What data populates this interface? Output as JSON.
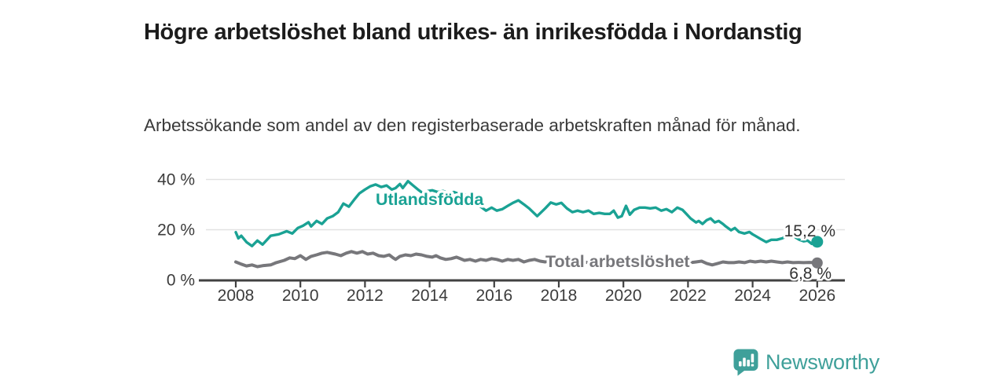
{
  "header": {
    "title": "Högre arbetslöshet bland utrikes- än inrikesfödda i Nordanstig",
    "subtitle": "Arbetssökande som andel av den registerbaserade arbetskraften månad för månad."
  },
  "branding": {
    "logo_text": "Newsworthy",
    "logo_icon": "bar-chart-speech-bubble-icon",
    "accent_color": "#3fa09a"
  },
  "chart_data": {
    "type": "line",
    "title": "Högre arbetslöshet bland utrikes- än inrikesfödda i Nordanstig",
    "subtitle": "Arbetssökande som andel av den registerbaserade arbetskraften månad för månad.",
    "unit": "%",
    "grid": "horizontal",
    "legend_position": "inline-labels",
    "x_axis": {
      "tick_values": [
        2008,
        2010,
        2012,
        2014,
        2016,
        2018,
        2020,
        2022,
        2024,
        2026
      ],
      "tick_labels": [
        "2008",
        "2010",
        "2012",
        "2014",
        "2016",
        "2018",
        "2020",
        "2022",
        "2024",
        "2026"
      ],
      "range": [
        2006.9,
        2026.8
      ]
    },
    "y_axis": {
      "tick_values": [
        0,
        20,
        40
      ],
      "tick_labels": [
        "0 %",
        "20 %",
        "40 %"
      ],
      "range": [
        0,
        43
      ]
    },
    "colors": {
      "grid": "#e2e2e2",
      "axis": "#414141",
      "tick_text": "#3c3c3c",
      "value_label_text": "#333333"
    },
    "series": [
      {
        "name": "Utlandsfödda",
        "color": "#1aa294",
        "end_value": 15.2,
        "end_label": "15,2 %",
        "points": [
          [
            2008.0,
            19.0
          ],
          [
            2008.08,
            16.6
          ],
          [
            2008.17,
            17.6
          ],
          [
            2008.33,
            15.1
          ],
          [
            2008.5,
            13.5
          ],
          [
            2008.67,
            15.7
          ],
          [
            2008.83,
            14.1
          ],
          [
            2009.08,
            17.6
          ],
          [
            2009.33,
            18.2
          ],
          [
            2009.58,
            19.4
          ],
          [
            2009.75,
            18.5
          ],
          [
            2009.92,
            20.7
          ],
          [
            2010.08,
            21.6
          ],
          [
            2010.25,
            23.0
          ],
          [
            2010.33,
            21.3
          ],
          [
            2010.5,
            23.5
          ],
          [
            2010.67,
            22.3
          ],
          [
            2010.83,
            24.5
          ],
          [
            2011.0,
            25.4
          ],
          [
            2011.17,
            27.0
          ],
          [
            2011.33,
            30.4
          ],
          [
            2011.5,
            29.2
          ],
          [
            2011.67,
            32.0
          ],
          [
            2011.83,
            34.5
          ],
          [
            2012.0,
            36.0
          ],
          [
            2012.17,
            37.3
          ],
          [
            2012.33,
            38.0
          ],
          [
            2012.5,
            37.0
          ],
          [
            2012.67,
            37.6
          ],
          [
            2012.83,
            36.0
          ],
          [
            2012.95,
            36.6
          ],
          [
            2013.08,
            38.2
          ],
          [
            2013.17,
            36.6
          ],
          [
            2013.33,
            39.3
          ],
          [
            2013.5,
            37.5
          ],
          [
            2013.67,
            35.7
          ],
          [
            2013.83,
            34.2
          ],
          [
            2013.95,
            35.4
          ],
          [
            2014.08,
            35.7
          ],
          [
            2014.25,
            35.0
          ],
          [
            2014.42,
            35.4
          ],
          [
            2014.58,
            34.5
          ],
          [
            2014.75,
            35.0
          ],
          [
            2014.92,
            34.2
          ],
          [
            2015.08,
            34.0
          ],
          [
            2015.25,
            33.5
          ],
          [
            2015.42,
            31.0
          ],
          [
            2015.58,
            29.2
          ],
          [
            2015.75,
            27.6
          ],
          [
            2015.92,
            28.8
          ],
          [
            2016.08,
            27.6
          ],
          [
            2016.25,
            28.2
          ],
          [
            2016.42,
            29.5
          ],
          [
            2016.58,
            30.7
          ],
          [
            2016.75,
            31.7
          ],
          [
            2016.92,
            30.1
          ],
          [
            2017.08,
            28.5
          ],
          [
            2017.33,
            25.4
          ],
          [
            2017.58,
            28.5
          ],
          [
            2017.75,
            30.8
          ],
          [
            2017.92,
            30.1
          ],
          [
            2018.08,
            30.7
          ],
          [
            2018.25,
            28.5
          ],
          [
            2018.42,
            27.0
          ],
          [
            2018.58,
            27.6
          ],
          [
            2018.75,
            27.0
          ],
          [
            2018.92,
            27.6
          ],
          [
            2019.08,
            26.3
          ],
          [
            2019.25,
            26.7
          ],
          [
            2019.42,
            26.3
          ],
          [
            2019.58,
            26.3
          ],
          [
            2019.7,
            27.6
          ],
          [
            2019.83,
            24.8
          ],
          [
            2019.95,
            25.4
          ],
          [
            2020.08,
            29.5
          ],
          [
            2020.2,
            26.0
          ],
          [
            2020.33,
            27.9
          ],
          [
            2020.5,
            28.8
          ],
          [
            2020.67,
            28.8
          ],
          [
            2020.83,
            28.5
          ],
          [
            2021.0,
            28.8
          ],
          [
            2021.17,
            27.6
          ],
          [
            2021.33,
            28.2
          ],
          [
            2021.5,
            27.0
          ],
          [
            2021.67,
            28.8
          ],
          [
            2021.83,
            27.9
          ],
          [
            2021.95,
            26.3
          ],
          [
            2022.08,
            24.5
          ],
          [
            2022.25,
            22.9
          ],
          [
            2022.33,
            23.5
          ],
          [
            2022.45,
            22.3
          ],
          [
            2022.58,
            23.8
          ],
          [
            2022.7,
            24.5
          ],
          [
            2022.83,
            22.9
          ],
          [
            2022.95,
            23.5
          ],
          [
            2023.08,
            22.3
          ],
          [
            2023.17,
            21.3
          ],
          [
            2023.33,
            19.8
          ],
          [
            2023.45,
            20.7
          ],
          [
            2023.58,
            19.1
          ],
          [
            2023.75,
            18.5
          ],
          [
            2023.9,
            19.1
          ],
          [
            2024.0,
            18.2
          ],
          [
            2024.08,
            17.6
          ],
          [
            2024.25,
            16.3
          ],
          [
            2024.42,
            15.1
          ],
          [
            2024.58,
            16.0
          ],
          [
            2024.75,
            16.0
          ],
          [
            2024.92,
            16.6
          ],
          [
            2025.08,
            17.6
          ],
          [
            2025.17,
            18.5
          ],
          [
            2025.33,
            16.9
          ],
          [
            2025.45,
            16.0
          ],
          [
            2025.58,
            15.4
          ],
          [
            2025.7,
            15.7
          ],
          [
            2025.83,
            14.4
          ],
          [
            2025.92,
            15.7
          ],
          [
            2026.0,
            15.2
          ]
        ]
      },
      {
        "name": "Total arbetslöshet",
        "color": "#77777b",
        "end_value": 6.8,
        "end_label": "6,8 %",
        "points": [
          [
            2008.0,
            7.2
          ],
          [
            2008.17,
            6.3
          ],
          [
            2008.33,
            5.6
          ],
          [
            2008.5,
            6.0
          ],
          [
            2008.67,
            5.3
          ],
          [
            2008.83,
            5.7
          ],
          [
            2009.08,
            6.0
          ],
          [
            2009.25,
            6.9
          ],
          [
            2009.5,
            7.8
          ],
          [
            2009.67,
            8.8
          ],
          [
            2009.83,
            8.5
          ],
          [
            2010.0,
            9.7
          ],
          [
            2010.17,
            8.2
          ],
          [
            2010.33,
            9.4
          ],
          [
            2010.5,
            10.0
          ],
          [
            2010.67,
            10.7
          ],
          [
            2010.83,
            11.0
          ],
          [
            2011.08,
            10.3
          ],
          [
            2011.25,
            9.7
          ],
          [
            2011.42,
            10.7
          ],
          [
            2011.58,
            11.3
          ],
          [
            2011.75,
            10.7
          ],
          [
            2011.92,
            11.3
          ],
          [
            2012.08,
            10.3
          ],
          [
            2012.25,
            10.7
          ],
          [
            2012.42,
            9.7
          ],
          [
            2012.58,
            9.4
          ],
          [
            2012.75,
            10.0
          ],
          [
            2012.87,
            8.8
          ],
          [
            2012.95,
            8.2
          ],
          [
            2013.08,
            9.4
          ],
          [
            2013.25,
            10.0
          ],
          [
            2013.42,
            9.7
          ],
          [
            2013.58,
            10.3
          ],
          [
            2013.75,
            10.0
          ],
          [
            2013.92,
            9.4
          ],
          [
            2014.08,
            9.1
          ],
          [
            2014.2,
            9.7
          ],
          [
            2014.33,
            8.8
          ],
          [
            2014.5,
            8.2
          ],
          [
            2014.67,
            8.5
          ],
          [
            2014.83,
            9.1
          ],
          [
            2014.95,
            8.5
          ],
          [
            2015.08,
            7.8
          ],
          [
            2015.25,
            8.2
          ],
          [
            2015.42,
            7.5
          ],
          [
            2015.58,
            8.2
          ],
          [
            2015.75,
            7.8
          ],
          [
            2015.92,
            8.5
          ],
          [
            2016.08,
            8.2
          ],
          [
            2016.25,
            7.5
          ],
          [
            2016.42,
            8.2
          ],
          [
            2016.58,
            7.8
          ],
          [
            2016.75,
            8.2
          ],
          [
            2016.92,
            7.2
          ],
          [
            2017.08,
            7.8
          ],
          [
            2017.25,
            8.2
          ],
          [
            2017.42,
            7.5
          ],
          [
            2017.58,
            7.2
          ],
          [
            2017.75,
            7.8
          ],
          [
            2017.92,
            7.5
          ],
          [
            2018.08,
            7.2
          ],
          [
            2018.25,
            7.8
          ],
          [
            2018.42,
            7.2
          ],
          [
            2018.58,
            6.9
          ],
          [
            2018.75,
            7.2
          ],
          [
            2018.92,
            6.9
          ],
          [
            2019.08,
            7.5
          ],
          [
            2019.25,
            7.2
          ],
          [
            2019.42,
            6.9
          ],
          [
            2019.58,
            7.2
          ],
          [
            2019.75,
            7.5
          ],
          [
            2019.92,
            7.2
          ],
          [
            2020.08,
            7.8
          ],
          [
            2020.25,
            8.5
          ],
          [
            2020.42,
            8.2
          ],
          [
            2020.58,
            7.8
          ],
          [
            2020.75,
            7.5
          ],
          [
            2020.92,
            7.2
          ],
          [
            2021.08,
            7.5
          ],
          [
            2021.25,
            7.2
          ],
          [
            2021.42,
            7.5
          ],
          [
            2021.58,
            7.2
          ],
          [
            2021.75,
            6.9
          ],
          [
            2021.92,
            7.2
          ],
          [
            2022.08,
            6.9
          ],
          [
            2022.25,
            7.2
          ],
          [
            2022.42,
            7.5
          ],
          [
            2022.58,
            6.6
          ],
          [
            2022.75,
            6.0
          ],
          [
            2022.92,
            6.6
          ],
          [
            2023.08,
            7.2
          ],
          [
            2023.25,
            6.9
          ],
          [
            2023.42,
            6.9
          ],
          [
            2023.58,
            7.2
          ],
          [
            2023.75,
            6.9
          ],
          [
            2023.92,
            7.5
          ],
          [
            2024.08,
            7.2
          ],
          [
            2024.25,
            7.5
          ],
          [
            2024.42,
            7.2
          ],
          [
            2024.58,
            7.5
          ],
          [
            2024.75,
            7.2
          ],
          [
            2024.92,
            6.9
          ],
          [
            2025.08,
            7.2
          ],
          [
            2025.25,
            6.9
          ],
          [
            2025.42,
            7.0
          ],
          [
            2025.58,
            6.9
          ],
          [
            2025.75,
            7.0
          ],
          [
            2025.92,
            6.9
          ],
          [
            2026.0,
            6.8
          ]
        ]
      }
    ]
  }
}
